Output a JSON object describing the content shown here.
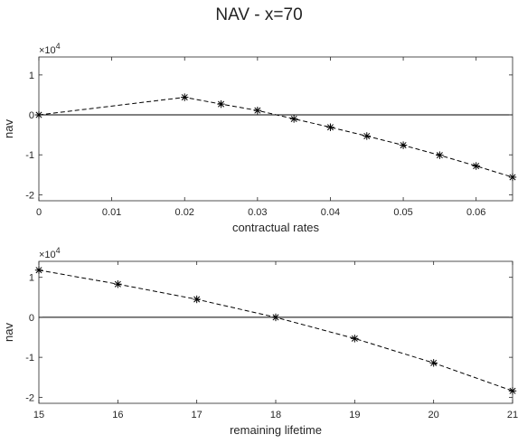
{
  "figure": {
    "title": "NAV - x=70"
  },
  "chart_data": [
    {
      "type": "line",
      "xlabel": "contractual rates",
      "ylabel": "nav",
      "y_exponent_label": "×10",
      "y_exponent_power": "4",
      "xlim": [
        0,
        0.065
      ],
      "ylim": [
        -21500,
        14500
      ],
      "x_ticks": [
        0,
        0.01,
        0.02,
        0.03,
        0.04,
        0.05,
        0.06
      ],
      "x_tick_labels": [
        "0",
        "0.01",
        "0.02",
        "0.03",
        "0.04",
        "0.05",
        "0.06"
      ],
      "y_ticks": [
        -20000,
        -10000,
        0,
        10000
      ],
      "y_tick_labels": [
        "-2",
        "-1",
        "0",
        "1"
      ],
      "reference_line_y": 0,
      "grid": false,
      "series": [
        {
          "line_style": "dashed",
          "marker": "*",
          "color": "#000000",
          "x": [
            0,
            0.02,
            0.025,
            0.03,
            0.035,
            0.04,
            0.045,
            0.05,
            0.055,
            0.06,
            0.065
          ],
          "y": [
            0,
            4400,
            2700,
            1100,
            -1000,
            -3100,
            -5300,
            -7600,
            -10100,
            -12800,
            -15600
          ]
        }
      ]
    },
    {
      "type": "line",
      "xlabel": "remaining lifetime",
      "ylabel": "nav",
      "y_exponent_label": "×10",
      "y_exponent_power": "4",
      "xlim": [
        15,
        21
      ],
      "ylim": [
        -21500,
        14000
      ],
      "x_ticks": [
        15,
        16,
        17,
        18,
        19,
        20,
        21
      ],
      "x_tick_labels": [
        "15",
        "16",
        "17",
        "18",
        "19",
        "20",
        "21"
      ],
      "y_ticks": [
        -20000,
        -10000,
        0,
        10000
      ],
      "y_tick_labels": [
        "-2",
        "-1",
        "0",
        "1"
      ],
      "reference_line_y": 0,
      "grid": false,
      "series": [
        {
          "line_style": "dashed",
          "marker": "*",
          "color": "#000000",
          "x": [
            15,
            16,
            17,
            18,
            19,
            20,
            21
          ],
          "y": [
            11800,
            8300,
            4500,
            0,
            -5300,
            -11400,
            -18400
          ]
        }
      ]
    }
  ]
}
